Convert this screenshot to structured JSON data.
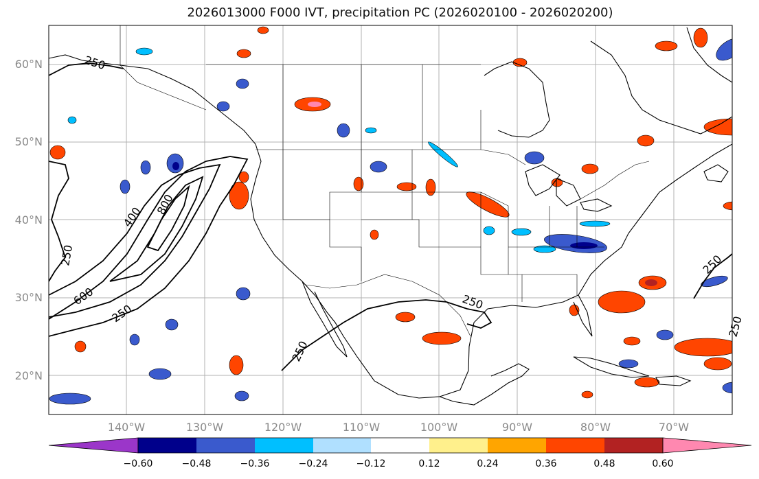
{
  "title": "2026013000 F000 IVT, precipitation PC (2026020100 - 2026020200)",
  "map": {
    "lat_labels": [
      "60°N",
      "50°N",
      "40°N",
      "30°N",
      "20°N"
    ],
    "lon_labels": [
      "140°W",
      "130°W",
      "120°W",
      "110°W",
      "100°W",
      "90°W",
      "80°W",
      "70°W"
    ],
    "ivt_contour_labels": [
      "250",
      "400",
      "800",
      "250",
      "600",
      "250",
      "250",
      "250",
      "250",
      "250"
    ],
    "colors": {
      "coast": "#000000",
      "grid": "#b0b0b0",
      "ivt_contour": "#000000"
    }
  },
  "colorbar": {
    "labels": [
      "−0.60",
      "−0.48",
      "−0.36",
      "−0.24",
      "−0.12",
      "0.12",
      "0.24",
      "0.36",
      "0.48",
      "0.60"
    ],
    "colors": [
      "#9b36c9",
      "#00008b",
      "#3a5acd",
      "#00bfff",
      "#b0e0ff",
      "#ffffff",
      "#fff08c",
      "#ffa500",
      "#ff4500",
      "#b22222",
      "#ff88b0"
    ]
  }
}
